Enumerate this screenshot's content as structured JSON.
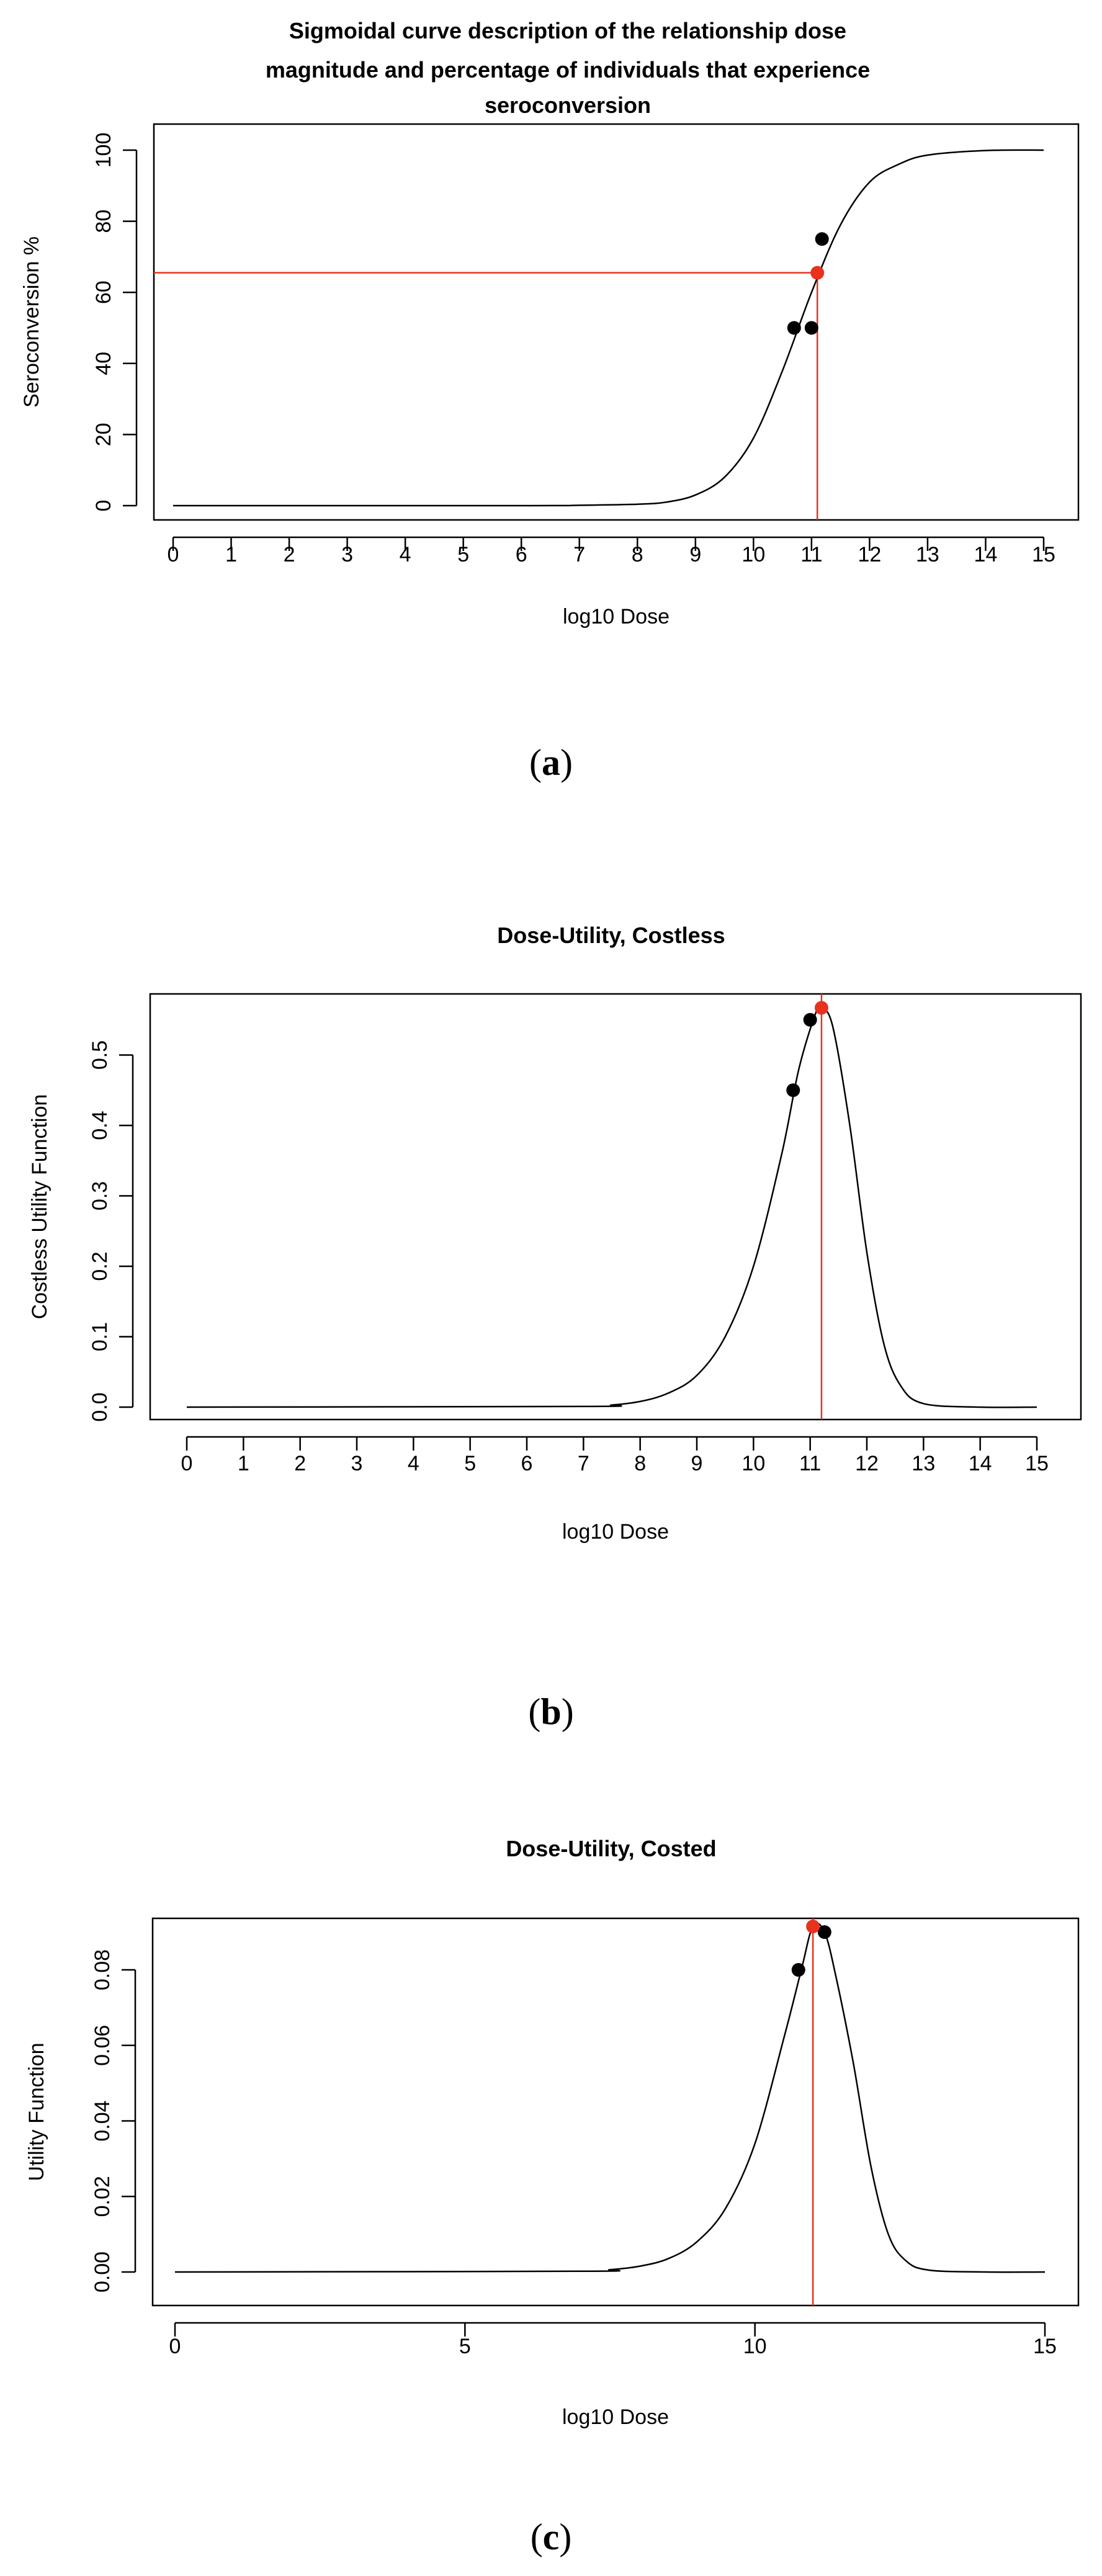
{
  "chart_data": [
    {
      "type": "line",
      "title_lines": [
        "Sigmoidal curve description of the relationship dose",
        "magnitude and percentage of individuals that experience",
        "seroconversion"
      ],
      "xlabel": "log10 Dose",
      "ylabel": "Seroconversion %",
      "xlim": [
        0,
        15
      ],
      "ylim": [
        0,
        100
      ],
      "xticks": [
        0,
        1,
        2,
        3,
        4,
        5,
        6,
        7,
        8,
        9,
        10,
        11,
        12,
        13,
        14,
        15
      ],
      "yticks": [
        0,
        20,
        40,
        60,
        80,
        100
      ],
      "ytick_labels": [
        "0",
        "20",
        "40",
        "60",
        "80",
        "100"
      ],
      "grid": false,
      "series": [
        {
          "kind": "curve",
          "color": "#000000",
          "x": [
            0,
            6,
            7,
            8,
            8.5,
            9,
            9.5,
            10,
            10.5,
            11,
            11.5,
            12,
            12.5,
            13,
            14,
            15
          ],
          "y": [
            0,
            0,
            0.1,
            0.4,
            1,
            3,
            8,
            19,
            38,
            60,
            79,
            91,
            96,
            98.6,
            99.9,
            100
          ]
        },
        {
          "kind": "points",
          "color": "#000000",
          "x": [
            10.7,
            11.0,
            11.18
          ],
          "y": [
            50,
            50,
            75
          ]
        },
        {
          "kind": "points",
          "color": "#e8321e",
          "x": [
            11.1
          ],
          "y": [
            65.5
          ]
        }
      ],
      "reference_lines": {
        "color": "#e8321e",
        "x": 11.1,
        "y": 65.5
      }
    },
    {
      "type": "line",
      "title_lines": [
        "Dose-Utility, Costless"
      ],
      "xlabel": "log10 Dose",
      "ylabel": "Costless Utility Function",
      "xlim": [
        0,
        15
      ],
      "ylim": [
        0,
        0.57
      ],
      "xticks": [
        0,
        1,
        2,
        3,
        4,
        5,
        6,
        7,
        8,
        9,
        10,
        11,
        12,
        13,
        14,
        15
      ],
      "yticks": [
        0,
        0.1,
        0.2,
        0.3,
        0.4,
        0.5
      ],
      "ytick_labels": [
        "0.0",
        "0.1",
        "0.2",
        "0.3",
        "0.4",
        "0.5"
      ],
      "grid": false,
      "series": [
        {
          "kind": "curve",
          "color": "#000000",
          "x": [
            0,
            7,
            7.5,
            8,
            8.5,
            9,
            9.5,
            10,
            10.5,
            10.8,
            11.1,
            11.2,
            11.4,
            11.7,
            12,
            12.3,
            12.6,
            13,
            14,
            15
          ],
          "y": [
            0,
            0.001,
            0.003,
            0.008,
            0.02,
            0.045,
            0.1,
            0.2,
            0.36,
            0.48,
            0.56,
            0.567,
            0.54,
            0.4,
            0.22,
            0.09,
            0.03,
            0.005,
            0,
            0
          ]
        },
        {
          "kind": "points",
          "color": "#000000",
          "x": [
            10.7,
            11.0
          ],
          "y": [
            0.45,
            0.55
          ]
        },
        {
          "kind": "points",
          "color": "#e8321e",
          "x": [
            11.2
          ],
          "y": [
            0.567
          ]
        }
      ],
      "reference_lines": {
        "color": "#e8321e",
        "x": 11.2
      }
    },
    {
      "type": "line",
      "title_lines": [
        "Dose-Utility, Costed"
      ],
      "xlabel": "log10 Dose",
      "ylabel": "Utility Function",
      "xlim": [
        0,
        15
      ],
      "ylim": [
        0,
        0.092
      ],
      "xticks": [
        0,
        5,
        10,
        15
      ],
      "yticks": [
        0,
        0.02,
        0.04,
        0.06,
        0.08
      ],
      "ytick_labels": [
        "0.00",
        "0.02",
        "0.04",
        "0.06",
        "0.08"
      ],
      "grid": false,
      "series": [
        {
          "kind": "curve",
          "color": "#000000",
          "x": [
            0,
            7,
            7.5,
            8,
            8.5,
            9,
            9.5,
            10,
            10.5,
            10.8,
            11.0,
            11.2,
            11.4,
            11.7,
            12,
            12.3,
            12.6,
            13,
            14,
            15
          ],
          "y": [
            0,
            0.0002,
            0.0006,
            0.0015,
            0.0035,
            0.008,
            0.017,
            0.034,
            0.062,
            0.08,
            0.0915,
            0.09,
            0.078,
            0.055,
            0.028,
            0.01,
            0.003,
            0.0005,
            0,
            0
          ]
        },
        {
          "kind": "points",
          "color": "#000000",
          "x": [
            10.75,
            11.2
          ],
          "y": [
            0.08,
            0.09
          ]
        },
        {
          "kind": "points",
          "color": "#e8321e",
          "x": [
            11.0
          ],
          "y": [
            0.0915
          ]
        }
      ],
      "reference_lines": {
        "color": "#e8321e",
        "x": 11.0
      }
    }
  ],
  "captions": [
    "a",
    "b",
    "c"
  ]
}
